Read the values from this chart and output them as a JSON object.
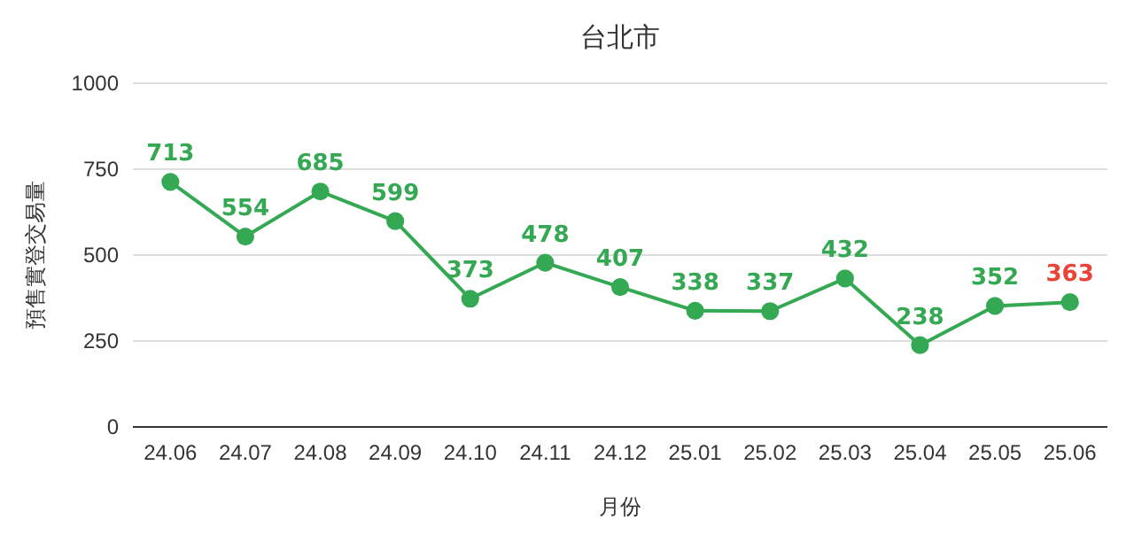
{
  "chart_data": {
    "type": "line",
    "title": "台北市",
    "xlabel": "月份",
    "ylabel": "預售實登交易量",
    "categories": [
      "24.06",
      "24.07",
      "24.08",
      "24.09",
      "24.10",
      "24.11",
      "24.12",
      "25.01",
      "25.02",
      "25.03",
      "25.04",
      "25.05",
      "25.06"
    ],
    "series": [
      {
        "color": "#34a853",
        "values": [
          713,
          554,
          685,
          599,
          373,
          478,
          407,
          338,
          337,
          432,
          238,
          352,
          363
        ]
      }
    ],
    "value_labels": [
      "713",
      "554",
      "685",
      "599",
      "373",
      "478",
      "407",
      "338",
      "337",
      "432",
      "238",
      "352",
      null
    ],
    "annotations": [
      {
        "text": "363",
        "x": "25.06",
        "y": 363
      }
    ],
    "ylim": [
      0,
      1000
    ],
    "yticks": [
      0,
      250,
      500,
      750,
      1000
    ],
    "grid": "y",
    "marker": "circle",
    "line_style": "solid"
  }
}
